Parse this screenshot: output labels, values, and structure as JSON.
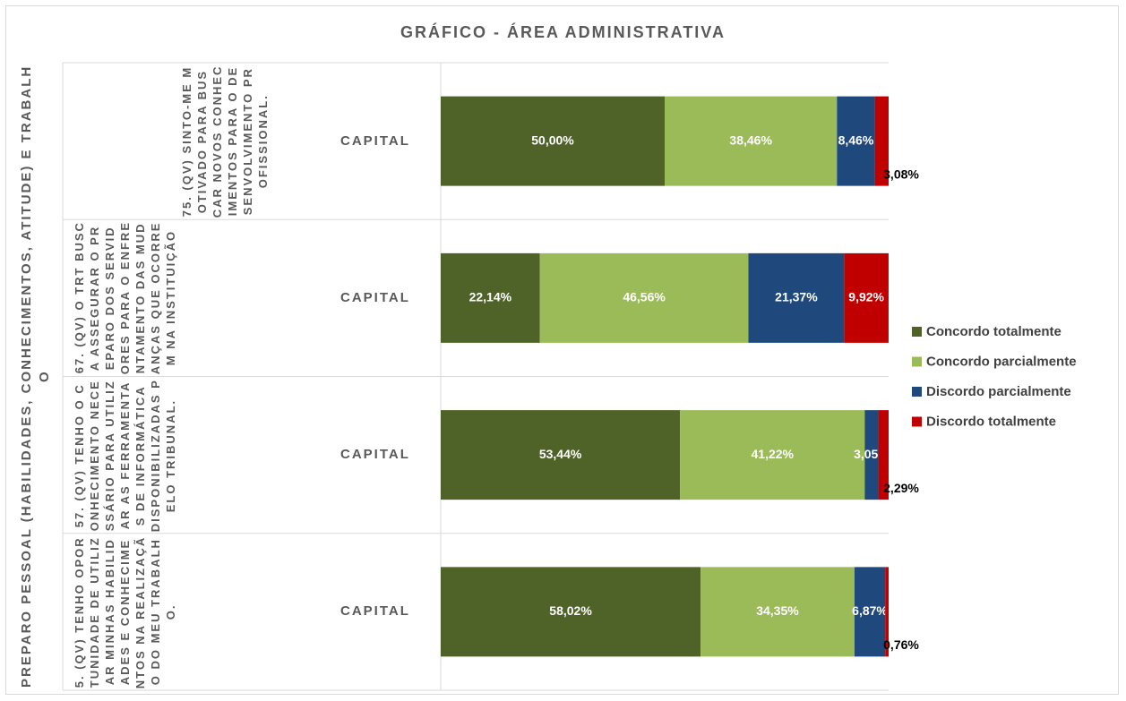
{
  "chart_data": {
    "type": "bar",
    "orientation": "horizontal",
    "stacked": true,
    "title": "GRÁFICO - ÁREA ADMINISTRATIVA",
    "group_label": "PREPARO PESSOAL (HABILIDADES, CONHECIMENTOS, ATITUDE) E TRABALHO",
    "questions": [
      "75. (QV) SINTO-ME MOTIVADO PARA BUSCAR NOVOS CONHECIMENTOS PARA O DESENVOLVIMENTO PROFISSIONAL.",
      "67. (QV) O TRT BUSCA ASSEGURAR O PREPARO DOS SERVIDORES PARA O ENFRENTAMENTO DAS MUDANÇAS QUE OCORREM NA INSTITUIÇÃO",
      "57. (QV) TENHO O CONHECIMENTO NECESSÁRIO PARA UTILIZAR AS FERRAMENTAS DE INFORMÁTICA DISPONIBILIZADAS PELO TRIBUNAL.",
      "5. (QV) TENHO OPORTUNIDADE DE UTILIZAR MINHAS HABILIDADES E CONHECIMENTOS NA REALIZAÇÃO DO MEU TRABALHO."
    ],
    "categories": [
      "CAPITAL",
      "CAPITAL",
      "CAPITAL",
      "CAPITAL"
    ],
    "xlim": [
      0,
      100
    ],
    "series": [
      {
        "name": "Concordo totalmente",
        "color": "#4f6228",
        "values": [
          50.0,
          22.14,
          53.44,
          58.02
        ],
        "value_labels": [
          "50,00%",
          "22,14%",
          "53,44%",
          "58,02%"
        ]
      },
      {
        "name": "Concordo parcialmente",
        "color": "#9bbb59",
        "values": [
          38.46,
          46.56,
          41.22,
          34.35
        ],
        "value_labels": [
          "38,46%",
          "46,56%",
          "41,22%",
          "34,35%"
        ]
      },
      {
        "name": "Discordo parcialmente",
        "color": "#1f497d",
        "values": [
          8.46,
          21.37,
          3.05,
          6.87
        ],
        "value_labels": [
          "8,46%",
          "21,37%",
          "3,05%",
          "6,87%"
        ]
      },
      {
        "name": "Discordo totalmente",
        "color": "#c00000",
        "values": [
          3.08,
          9.92,
          2.29,
          0.76
        ],
        "value_labels": [
          "3,08%",
          "9,92%",
          "2,29%",
          "0,76%"
        ]
      }
    ],
    "legend": "right"
  }
}
